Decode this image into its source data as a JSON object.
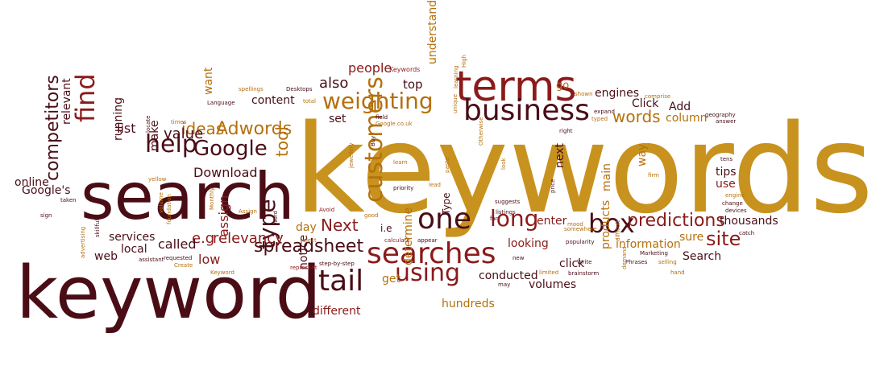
{
  "palette": {
    "dark": "#4a0d16",
    "red": "#8b1a1a",
    "orange": "#b5700c",
    "gold": "#c8921e"
  },
  "words": [
    {
      "text": "keywords",
      "color": "gold"
    },
    {
      "text": "search",
      "color": "dark"
    },
    {
      "text": "keyword",
      "color": "dark"
    },
    {
      "text": "terms",
      "color": "red"
    },
    {
      "text": "business",
      "color": "dark"
    },
    {
      "text": "weighting",
      "color": "orange"
    },
    {
      "text": "searches",
      "color": "red"
    },
    {
      "text": "tail",
      "color": "dark"
    },
    {
      "text": "one",
      "color": "dark"
    },
    {
      "text": "help",
      "color": "dark"
    },
    {
      "text": "Google",
      "color": "dark"
    },
    {
      "text": "find",
      "color": "red"
    },
    {
      "text": "customers",
      "color": "orange"
    },
    {
      "text": "using",
      "color": "red"
    },
    {
      "text": "box",
      "color": "dark"
    },
    {
      "text": "long",
      "color": "red"
    },
    {
      "text": "predictions",
      "color": "red"
    },
    {
      "text": "spreadsheet",
      "color": "dark"
    },
    {
      "text": "type",
      "color": "dark"
    },
    {
      "text": "competitors",
      "color": "dark"
    },
    {
      "text": "site",
      "color": "red"
    },
    {
      "text": "Adwords",
      "color": "orange"
    },
    {
      "text": "ideas",
      "color": "orange"
    },
    {
      "text": "words",
      "color": "orange"
    },
    {
      "text": "value",
      "color": "dark"
    },
    {
      "text": "Next",
      "color": "red"
    },
    {
      "text": "also",
      "color": "dark"
    },
    {
      "text": "people",
      "color": "red"
    },
    {
      "text": "top",
      "color": "dark"
    },
    {
      "text": "understand",
      "color": "orange"
    },
    {
      "text": "set",
      "color": "dark"
    },
    {
      "text": "content",
      "color": "dark"
    },
    {
      "text": "list",
      "color": "dark"
    },
    {
      "text": "tool",
      "color": "orange"
    },
    {
      "text": "Download",
      "color": "dark"
    },
    {
      "text": "e.g",
      "color": "red"
    },
    {
      "text": "relevancy",
      "color": "red"
    },
    {
      "text": "called",
      "color": "dark"
    },
    {
      "text": "services",
      "color": "dark"
    },
    {
      "text": "local",
      "color": "dark"
    },
    {
      "text": "web",
      "color": "dark"
    },
    {
      "text": "low",
      "color": "red"
    },
    {
      "text": "assign",
      "color": "red"
    },
    {
      "text": "notice",
      "color": "dark"
    },
    {
      "text": "different",
      "color": "red"
    },
    {
      "text": "get",
      "color": "orange"
    },
    {
      "text": "determine",
      "color": "orange"
    },
    {
      "text": "hundreds",
      "color": "orange"
    },
    {
      "text": "conducted",
      "color": "dark"
    },
    {
      "text": "volumes",
      "color": "dark"
    },
    {
      "text": "looking",
      "color": "red"
    },
    {
      "text": "click",
      "color": "dark"
    },
    {
      "text": "enter",
      "color": "red"
    },
    {
      "text": "products",
      "color": "orange"
    },
    {
      "text": "information",
      "color": "orange"
    },
    {
      "text": "sure",
      "color": "orange"
    },
    {
      "text": "Search",
      "color": "dark"
    },
    {
      "text": "thousands",
      "color": "dark"
    },
    {
      "text": "tips",
      "color": "dark"
    },
    {
      "text": "use",
      "color": "red"
    },
    {
      "text": "way",
      "color": "orange"
    },
    {
      "text": "main",
      "color": "orange"
    },
    {
      "text": "next",
      "color": "dark"
    },
    {
      "text": "engines",
      "color": "dark"
    },
    {
      "text": "Click",
      "color": "dark"
    },
    {
      "text": "Add",
      "color": "dark"
    },
    {
      "text": "column",
      "color": "orange"
    },
    {
      "text": "go",
      "color": "orange"
    },
    {
      "text": "Google's",
      "color": "dark"
    },
    {
      "text": "online",
      "color": "dark"
    },
    {
      "text": "relevant",
      "color": "dark"
    },
    {
      "text": "running",
      "color": "dark"
    },
    {
      "text": "make",
      "color": "dark"
    },
    {
      "text": "want",
      "color": "orange"
    },
    {
      "text": "day",
      "color": "orange"
    },
    {
      "text": "i.e",
      "color": "dark"
    },
    {
      "text": "Type",
      "color": "dark"
    },
    {
      "text": "Keywords",
      "color": "red"
    },
    {
      "text": "spellings",
      "color": "orange"
    },
    {
      "text": "Desktops",
      "color": "dark"
    },
    {
      "text": "Language",
      "color": "dark"
    },
    {
      "text": "total",
      "color": "orange"
    },
    {
      "text": "times",
      "color": "orange"
    },
    {
      "text": "field",
      "color": "dark"
    },
    {
      "text": "Google.co.uk",
      "color": "orange"
    },
    {
      "text": "Buy",
      "color": "dark"
    },
    {
      "text": "High",
      "color": "orange"
    },
    {
      "text": "learning",
      "color": "orange"
    },
    {
      "text": "unique",
      "color": "orange"
    },
    {
      "text": "Otherwise",
      "color": "orange"
    },
    {
      "text": "shown",
      "color": "orange"
    },
    {
      "text": "expand",
      "color": "dark"
    },
    {
      "text": "typed",
      "color": "orange"
    },
    {
      "text": "right",
      "color": "dark"
    },
    {
      "text": "comprise",
      "color": "orange"
    },
    {
      "text": "geography",
      "color": "dark"
    },
    {
      "text": "answer",
      "color": "dark"
    },
    {
      "text": "locate",
      "color": "dark"
    },
    {
      "text": "volume",
      "color": "orange"
    },
    {
      "text": "yellow",
      "color": "orange"
    },
    {
      "text": "taken",
      "color": "dark"
    },
    {
      "text": "sign",
      "color": "dark"
    },
    {
      "text": "jewellery",
      "color": "orange"
    },
    {
      "text": "learn",
      "color": "orange"
    },
    {
      "text": "priority",
      "color": "dark"
    },
    {
      "text": "lead",
      "color": "orange"
    },
    {
      "text": "paste",
      "color": "orange"
    },
    {
      "text": "suggests",
      "color": "dark"
    },
    {
      "text": "look",
      "color": "orange"
    },
    {
      "text": "price",
      "color": "dark"
    },
    {
      "text": "firm",
      "color": "orange"
    },
    {
      "text": "engine",
      "color": "orange"
    },
    {
      "text": "change",
      "color": "dark"
    },
    {
      "text": "devices",
      "color": "dark"
    },
    {
      "text": "Avoid",
      "color": "red"
    },
    {
      "text": "Word",
      "color": "dark"
    },
    {
      "text": "Assign",
      "color": "orange"
    },
    {
      "text": "Monthly",
      "color": "orange"
    },
    {
      "text": "good",
      "color": "orange"
    },
    {
      "text": "listings",
      "color": "dark"
    },
    {
      "text": "far",
      "color": "dark"
    },
    {
      "text": "mood",
      "color": "orange"
    },
    {
      "text": "somewhere",
      "color": "orange"
    },
    {
      "text": "tens",
      "color": "dark"
    },
    {
      "text": "catch",
      "color": "dark"
    },
    {
      "text": "difficult",
      "color": "orange"
    },
    {
      "text": "popularity",
      "color": "dark"
    },
    {
      "text": "Marketing",
      "color": "dark"
    },
    {
      "text": "Write",
      "color": "dark"
    },
    {
      "text": "Phrases",
      "color": "dark"
    },
    {
      "text": "selling",
      "color": "orange"
    },
    {
      "text": "hand",
      "color": "orange"
    },
    {
      "text": "demand",
      "color": "orange"
    },
    {
      "text": "limited",
      "color": "orange"
    },
    {
      "text": "brainstorm",
      "color": "dark"
    },
    {
      "text": "new",
      "color": "dark"
    },
    {
      "text": "appear",
      "color": "dark"
    },
    {
      "text": "calculate",
      "color": "red"
    },
    {
      "text": "select",
      "color": "orange"
    },
    {
      "text": "represent",
      "color": "red"
    },
    {
      "text": "step-by-step",
      "color": "dark"
    },
    {
      "text": "may",
      "color": "dark"
    },
    {
      "text": "foundation",
      "color": "orange"
    },
    {
      "text": "requested",
      "color": "dark"
    },
    {
      "text": "skillfully",
      "color": "dark"
    },
    {
      "text": "advertising",
      "color": "orange"
    },
    {
      "text": "assistant",
      "color": "dark"
    },
    {
      "text": "Create",
      "color": "orange"
    },
    {
      "text": "Keyword",
      "color": "orange"
    }
  ]
}
